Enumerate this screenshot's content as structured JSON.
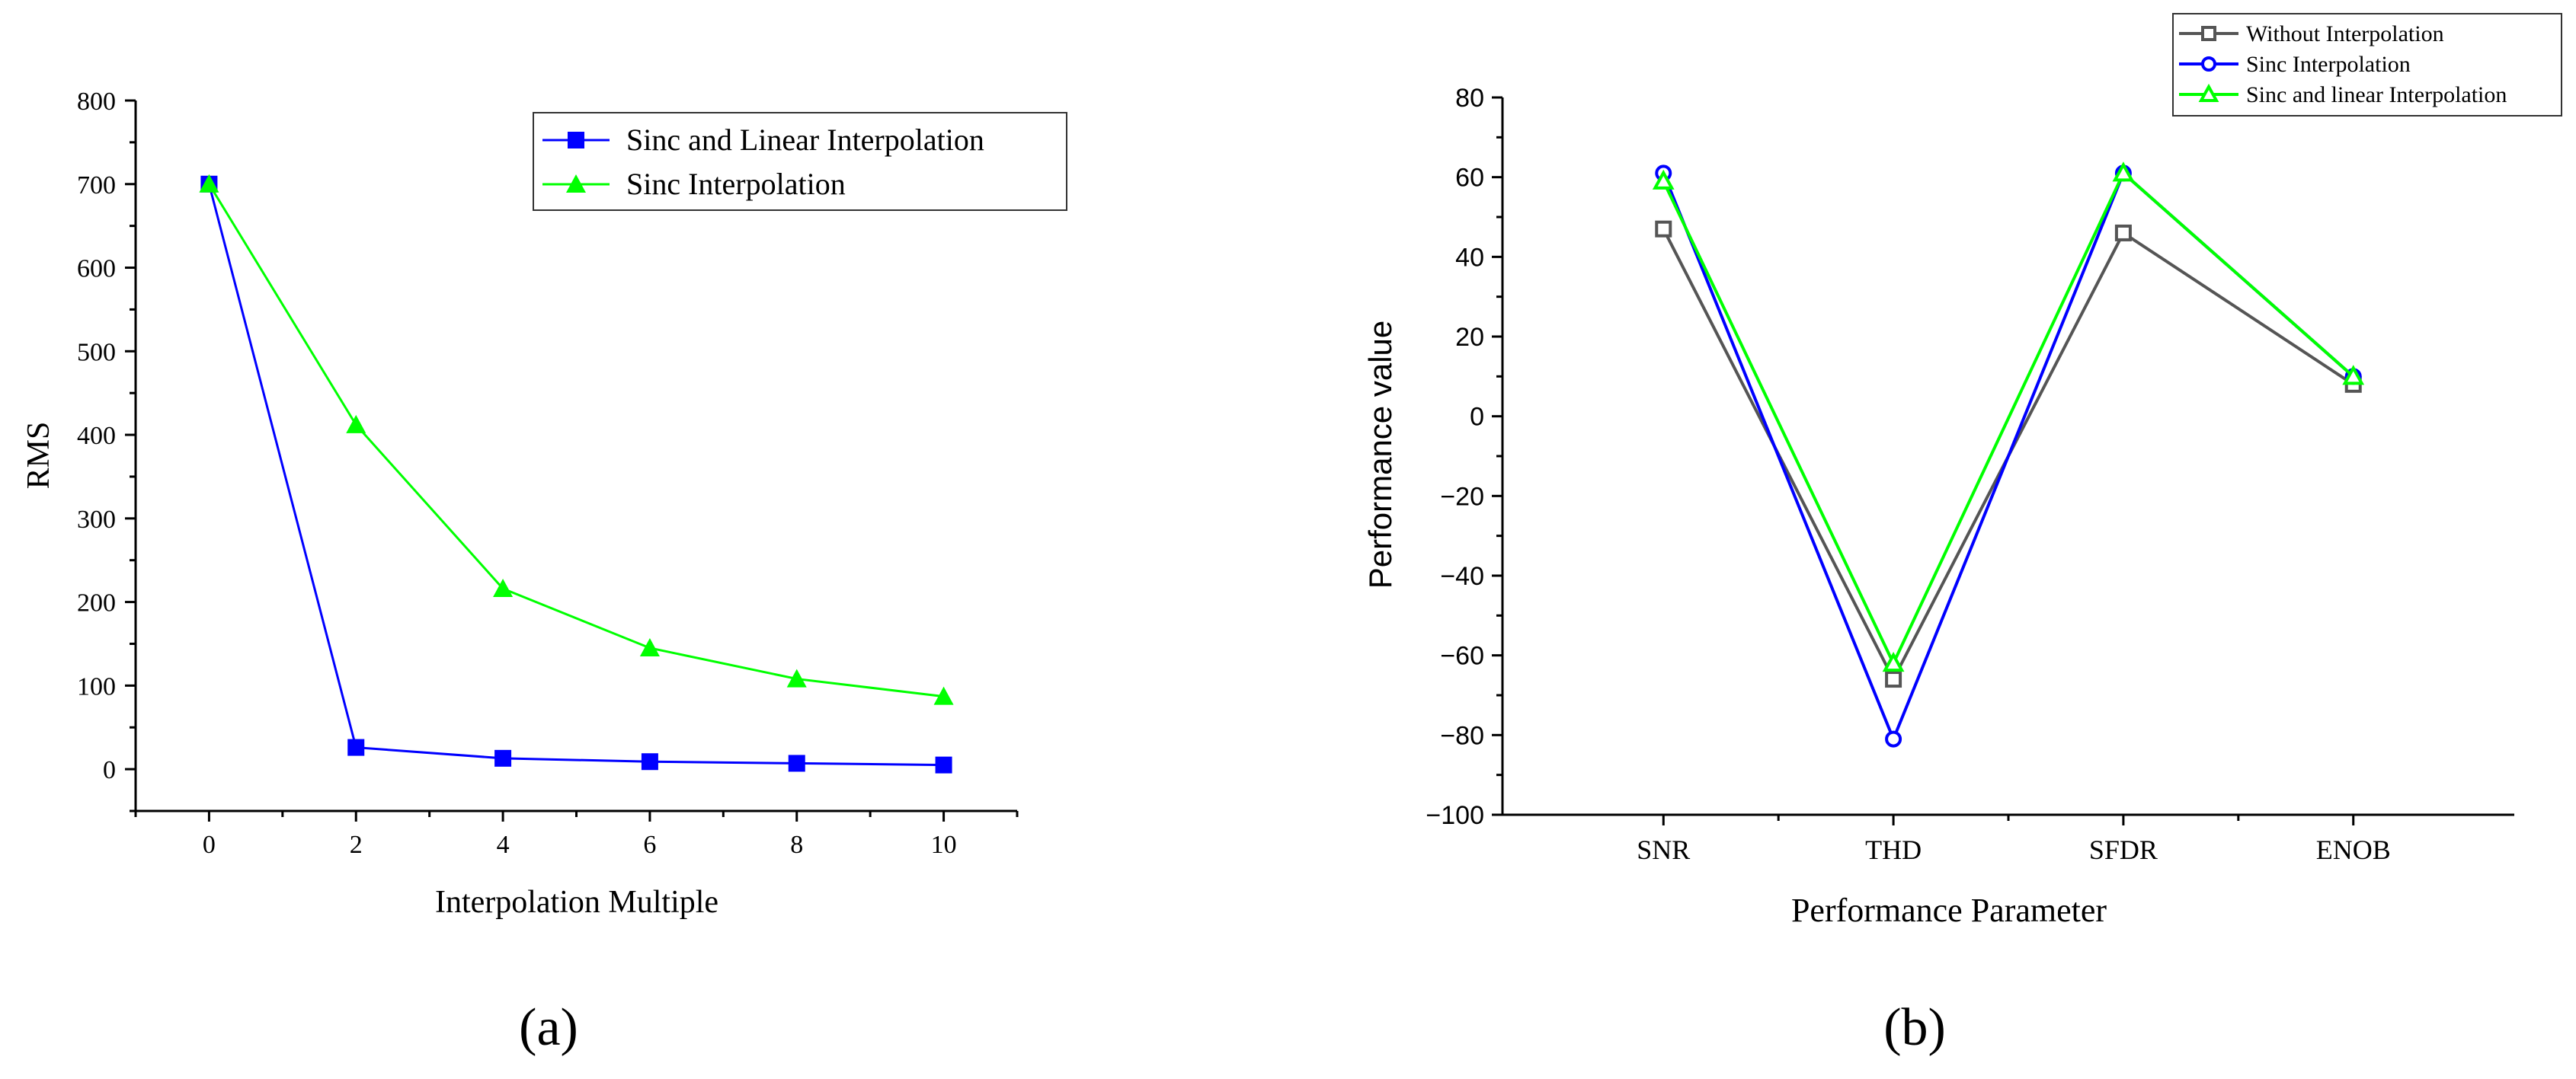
{
  "chart_data": [
    {
      "id": "a",
      "type": "line",
      "panel_label": "(a)",
      "xlabel": "Interpolation Multiple",
      "ylabel": "RMS",
      "xlim": [
        -1,
        11
      ],
      "ylim": [
        -50,
        800
      ],
      "xticks": [
        0,
        2,
        4,
        6,
        8,
        10
      ],
      "yticks": [
        0,
        100,
        200,
        300,
        400,
        500,
        600,
        700,
        800
      ],
      "legend_position": "top-right",
      "series": [
        {
          "name": "Sinc and Linear Interpolation",
          "color": "#0000FF",
          "marker": "square-filled",
          "x": [
            0,
            2,
            4,
            6,
            8,
            10
          ],
          "values": [
            700,
            26,
            13,
            9,
            7,
            5
          ]
        },
        {
          "name": "Sinc Interpolation",
          "color": "#00FF00",
          "marker": "triangle-filled",
          "x": [
            0,
            2,
            4,
            6,
            8,
            10
          ],
          "values": [
            700,
            412,
            216,
            145,
            108,
            87
          ]
        }
      ]
    },
    {
      "id": "b",
      "type": "line",
      "panel_label": "(b)",
      "xlabel": "Performance Parameter",
      "ylabel": "Performance value",
      "categories": [
        "SNR",
        "THD",
        "SFDR",
        "ENOB"
      ],
      "ylim": [
        -100,
        80
      ],
      "yticks": [
        -100,
        -80,
        -60,
        -40,
        -20,
        0,
        20,
        40,
        60,
        80
      ],
      "legend_position": "top-right",
      "series": [
        {
          "name": "Without Interpolation",
          "color": "#555555",
          "marker": "square-open",
          "values": [
            47,
            -66,
            46,
            8
          ]
        },
        {
          "name": "Sinc Interpolation",
          "color": "#0000FF",
          "marker": "circle-open",
          "values": [
            61,
            -81,
            61,
            10
          ]
        },
        {
          "name": "Sinc and linear Interpolation",
          "color": "#00FF00",
          "marker": "triangle-open",
          "values": [
            59,
            -62,
            61,
            10
          ]
        }
      ]
    }
  ]
}
